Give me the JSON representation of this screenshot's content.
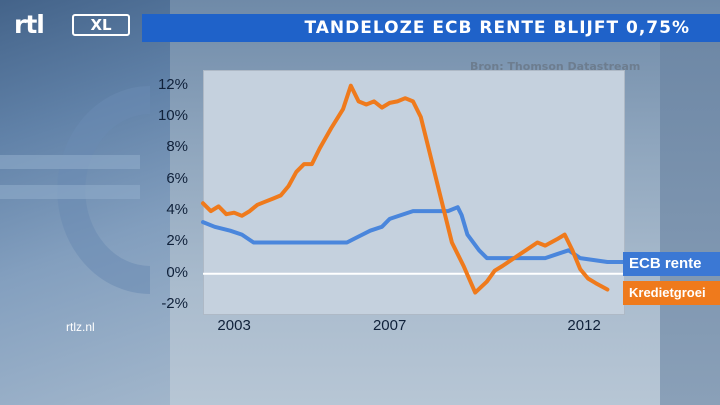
{
  "header": {
    "logo_rtl": "rtl",
    "logo_xl": "XL",
    "title": "TANDELOZE ECB RENTE BLIJFT 0,75%"
  },
  "chart_source": "Bron: Thomson Datastream",
  "footer": {
    "site": "rtlz.nl"
  },
  "colors": {
    "ecb": "#4a86dc",
    "krediet": "#ef7a1c",
    "title_bar": "#1f62c9"
  },
  "chart_data": {
    "type": "line",
    "title": "TANDELOZE ECB RENTE BLIJFT 0,75%",
    "xlim": [
      2002.2,
      2013.0
    ],
    "ylim": [
      -2.5,
      13
    ],
    "yticks": [
      12,
      10,
      8,
      6,
      4,
      2,
      0,
      -2
    ],
    "ytick_labels": [
      "12%",
      "10%",
      "8%",
      "6%",
      "4%",
      "2%",
      "0%",
      "-2%"
    ],
    "xticks": [
      2003,
      2007,
      2012
    ],
    "xtick_labels": [
      "2003",
      "2007",
      "2012"
    ],
    "zero_line": true,
    "legend_placement": "right",
    "series": [
      {
        "name": "ECB rente",
        "x": [
          2002.2,
          2002.5,
          2002.9,
          2003.2,
          2003.5,
          2004,
          2005,
          2005.9,
          2006.1,
          2006.3,
          2006.5,
          2006.8,
          2007.0,
          2007.3,
          2007.6,
          2008.0,
          2008.5,
          2008.75,
          2008.85,
          2009.0,
          2009.3,
          2009.5,
          2010,
          2011.0,
          2011.3,
          2011.6,
          2011.9,
          2012.6,
          2013.0
        ],
        "y": [
          3.3,
          3.0,
          2.75,
          2.5,
          2.0,
          2.0,
          2.0,
          2.0,
          2.25,
          2.5,
          2.75,
          3.0,
          3.5,
          3.75,
          4.0,
          4.0,
          4.0,
          4.25,
          3.75,
          2.5,
          1.5,
          1.0,
          1.0,
          1.0,
          1.25,
          1.5,
          1.0,
          0.75,
          0.75
        ]
      },
      {
        "name": "Kredietgroei",
        "x": [
          2002.2,
          2002.4,
          2002.6,
          2002.8,
          2003.0,
          2003.2,
          2003.4,
          2003.6,
          2003.8,
          2004.0,
          2004.2,
          2004.4,
          2004.6,
          2004.8,
          2005.0,
          2005.2,
          2005.5,
          2005.8,
          2006.0,
          2006.2,
          2006.4,
          2006.6,
          2006.8,
          2007.0,
          2007.2,
          2007.4,
          2007.6,
          2007.8,
          2008.0,
          2008.3,
          2008.6,
          2008.9,
          2009.2,
          2009.5,
          2009.7,
          2009.9,
          2010.2,
          2010.5,
          2010.8,
          2011.0,
          2011.3,
          2011.5,
          2011.7,
          2011.9,
          2012.1,
          2012.3,
          2012.6
        ],
        "y": [
          4.5,
          4.0,
          4.3,
          3.8,
          3.9,
          3.7,
          4.0,
          4.4,
          4.6,
          4.8,
          5.0,
          5.6,
          6.5,
          7.0,
          7.0,
          8.0,
          9.3,
          10.5,
          12.0,
          11.0,
          10.8,
          11.0,
          10.6,
          10.9,
          11.0,
          11.2,
          11.0,
          10.0,
          8.0,
          5.0,
          2.0,
          0.5,
          -1.2,
          -0.5,
          0.2,
          0.5,
          1.0,
          1.5,
          2.0,
          1.8,
          2.2,
          2.5,
          1.5,
          0.3,
          -0.3,
          -0.6,
          -1.0
        ]
      }
    ]
  }
}
